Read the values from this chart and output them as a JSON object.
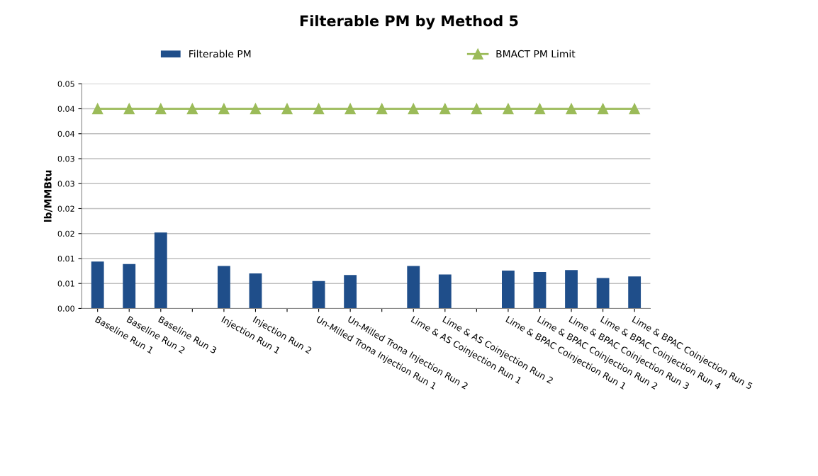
{
  "chart_data": {
    "type": "bar",
    "title": "Filterable PM by Method 5",
    "ylabel": "lb/MMBtu",
    "categories": [
      "Baseline Run 1",
      "Baseline Run 2",
      "Baseline Run 3",
      null,
      "Injection Run 1",
      "Injection Run 2",
      null,
      "Un-Milled Trona Injection Run 1",
      "Un-Milled Trona Injection Run 2",
      null,
      "Lime & AS Coinjection Run 1",
      "Lime & AS Coinjection Run 2",
      null,
      "Lime & BPAC Coinjection Run 1",
      "Lime & BPAC Coinjection Run 2",
      "Lime & BPAC Coinjection Run 3",
      "Lime & BPAC Coinjection Run 4",
      "Lime & BPAC Coinjection Run 5"
    ],
    "series": [
      {
        "name": "Filterable PM",
        "color": "#1f4e8a",
        "values": [
          0.0094,
          0.0089,
          0.0152,
          null,
          0.0085,
          0.007,
          null,
          0.0055,
          0.0067,
          null,
          0.0085,
          0.0068,
          null,
          0.0076,
          0.0073,
          0.0077,
          0.0061,
          0.0064
        ]
      },
      {
        "name": "BMACT PM Limit",
        "type": "line",
        "color": "#9bbb59",
        "marker": "triangle",
        "values": [
          0.04,
          0.04,
          0.04,
          0.04,
          0.04,
          0.04,
          0.04,
          0.04,
          0.04,
          0.04,
          0.04,
          0.04,
          0.04,
          0.04,
          0.04,
          0.04,
          0.04,
          0.04
        ]
      }
    ],
    "ylim": [
      0,
      0.045
    ],
    "yticks": [
      {
        "value": 0,
        "label": "0.00"
      },
      {
        "value": 0.005,
        "label": "0.01"
      },
      {
        "value": 0.01,
        "label": "0.01"
      },
      {
        "value": 0.015,
        "label": "0.02"
      },
      {
        "value": 0.02,
        "label": "0.02"
      },
      {
        "value": 0.025,
        "label": "0.03"
      },
      {
        "value": 0.03,
        "label": "0.03"
      },
      {
        "value": 0.035,
        "label": "0.04"
      },
      {
        "value": 0.04,
        "label": "0.04"
      },
      {
        "value": 0.045,
        "label": "0.05"
      }
    ],
    "grid": "y",
    "legend": "top"
  }
}
